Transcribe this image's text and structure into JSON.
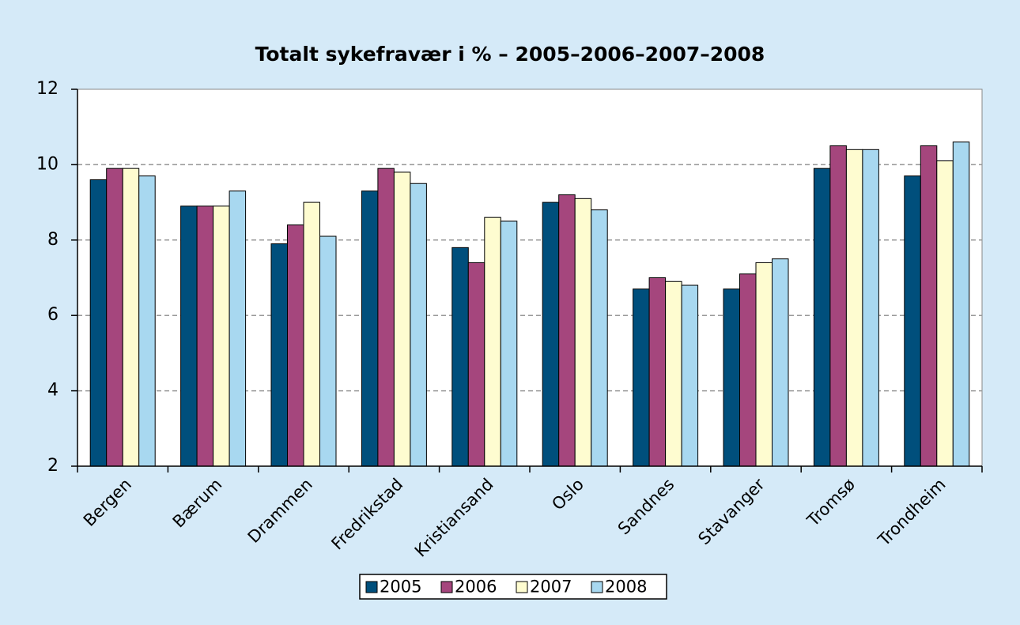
{
  "chart_data": {
    "type": "bar",
    "title": "Totalt sykefravær i % – 2005–2006–2007–2008",
    "categories": [
      "Bergen",
      "Bærum",
      "Drammen",
      "Fredrikstad",
      "Kristiansand",
      "Oslo",
      "Sandnes",
      "Stavanger",
      "Tromsø",
      "Trondheim"
    ],
    "series": [
      {
        "name": "2005",
        "color": "#004f7c",
        "values": [
          9.6,
          8.9,
          7.9,
          9.3,
          7.8,
          9.0,
          6.7,
          6.7,
          9.9,
          9.7
        ]
      },
      {
        "name": "2006",
        "color": "#a5467d",
        "values": [
          9.9,
          8.9,
          8.4,
          9.9,
          7.4,
          9.2,
          7.0,
          7.1,
          10.5,
          10.5
        ]
      },
      {
        "name": "2007",
        "color": "#fefcd0",
        "values": [
          9.9,
          8.9,
          9.0,
          9.8,
          8.6,
          9.1,
          6.9,
          7.4,
          10.4,
          10.1
        ]
      },
      {
        "name": "2008",
        "color": "#a8d8f0",
        "values": [
          9.7,
          9.3,
          8.1,
          9.5,
          8.5,
          8.8,
          6.8,
          7.5,
          10.4,
          10.6
        ]
      }
    ],
    "ylim": [
      2,
      12
    ],
    "yticks": [
      2,
      4,
      6,
      8,
      10,
      12
    ],
    "grid": true,
    "legend": "bottom"
  }
}
